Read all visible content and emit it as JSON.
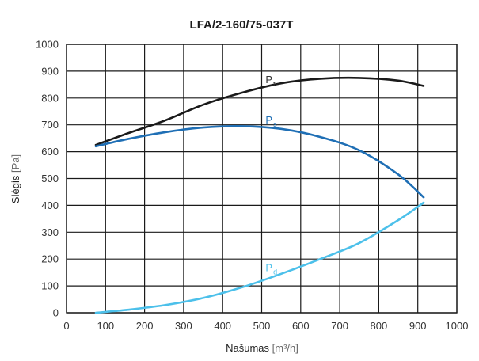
{
  "chart_data": {
    "type": "line",
    "title": "LFA/2-160/75-037T",
    "xlabel": "Našumas",
    "xunit": "[m³/h]",
    "ylabel": "Slėgis",
    "yunit": "[Pa]",
    "xlim": [
      0,
      1000
    ],
    "ylim": [
      0,
      1000
    ],
    "xticks": [
      0,
      100,
      200,
      300,
      400,
      500,
      600,
      700,
      800,
      900,
      1000
    ],
    "yticks": [
      0,
      100,
      200,
      300,
      400,
      500,
      600,
      700,
      800,
      900,
      1000
    ],
    "grid": true,
    "series": [
      {
        "name": "P",
        "subscript": "t",
        "color": "#1a1a1a",
        "x": [
          75,
          150,
          250,
          350,
          450,
          550,
          650,
          750,
          850,
          915
        ],
        "y": [
          625,
          665,
          715,
          775,
          820,
          855,
          872,
          875,
          865,
          845
        ]
      },
      {
        "name": "P",
        "subscript": "s",
        "color": "#1f6fb5",
        "x": [
          75,
          150,
          250,
          350,
          450,
          550,
          650,
          750,
          850,
          915
        ],
        "y": [
          620,
          645,
          672,
          690,
          695,
          685,
          655,
          605,
          515,
          430
        ]
      },
      {
        "name": "P",
        "subscript": "d",
        "color": "#4cc0ea",
        "x": [
          75,
          150,
          250,
          350,
          450,
          550,
          650,
          750,
          850,
          915
        ],
        "y": [
          0,
          10,
          28,
          55,
          95,
          145,
          200,
          260,
          345,
          410
        ]
      }
    ]
  }
}
